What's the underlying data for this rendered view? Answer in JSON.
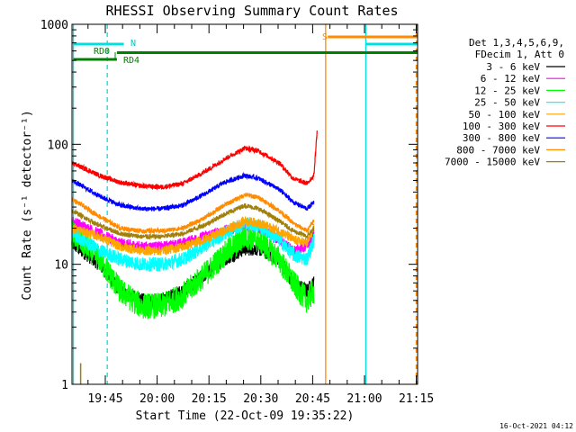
{
  "chart_data": {
    "type": "line",
    "title": "RHESSI Observing Summary Count Rates",
    "xlabel": "Start Time (22-Oct-09 19:35:22)",
    "ylabel": "Count Rate (s⁻¹ detector⁻¹)",
    "yscale": "log",
    "ylim": [
      1,
      1000
    ],
    "xlim_minutes_after_1935": [
      0,
      100
    ],
    "x_ticks": [
      "19:45",
      "20:00",
      "20:15",
      "20:30",
      "20:45",
      "21:00",
      "21:15"
    ],
    "y_ticks": [
      "1",
      "10",
      "100",
      "1000"
    ],
    "legend": {
      "header": [
        "Det 1,3,4,5,6,9,",
        "FDecim 1, Att 0"
      ],
      "placement": "right"
    },
    "series": [
      {
        "name": "3 - 6 keV",
        "color": "#000000",
        "anchors": [
          [
            0,
            15
          ],
          [
            8,
            10
          ],
          [
            14,
            6
          ],
          [
            20,
            5
          ],
          [
            26,
            5
          ],
          [
            32,
            6
          ],
          [
            38,
            8
          ],
          [
            44,
            11
          ],
          [
            50,
            13.5
          ],
          [
            54,
            13.5
          ],
          [
            60,
            11
          ],
          [
            64,
            7
          ],
          [
            68,
            6
          ],
          [
            70,
            7
          ]
        ]
      },
      {
        "name": "6 - 12 keV",
        "color": "#ff00ff",
        "anchors": [
          [
            0,
            23
          ],
          [
            8,
            18
          ],
          [
            14,
            15
          ],
          [
            20,
            14
          ],
          [
            26,
            14
          ],
          [
            32,
            15
          ],
          [
            38,
            17
          ],
          [
            44,
            19
          ],
          [
            50,
            21
          ],
          [
            54,
            20
          ],
          [
            60,
            16
          ],
          [
            64,
            13
          ],
          [
            68,
            14
          ],
          [
            70,
            18
          ]
        ]
      },
      {
        "name": "12 - 25 keV",
        "color": "#00ff00",
        "anchors": [
          [
            0,
            18
          ],
          [
            8,
            11
          ],
          [
            14,
            6
          ],
          [
            20,
            4.5
          ],
          [
            26,
            4.5
          ],
          [
            32,
            5.5
          ],
          [
            38,
            8
          ],
          [
            44,
            12
          ],
          [
            50,
            17
          ],
          [
            54,
            16
          ],
          [
            60,
            11
          ],
          [
            64,
            7
          ],
          [
            68,
            5
          ],
          [
            70,
            6
          ]
        ]
      },
      {
        "name": "25 - 50 keV",
        "color": "#00ffff",
        "anchors": [
          [
            0,
            18
          ],
          [
            8,
            13
          ],
          [
            14,
            11
          ],
          [
            20,
            10
          ],
          [
            26,
            10
          ],
          [
            32,
            11
          ],
          [
            38,
            14
          ],
          [
            44,
            18
          ],
          [
            50,
            22
          ],
          [
            54,
            21
          ],
          [
            60,
            16
          ],
          [
            64,
            12
          ],
          [
            68,
            11
          ],
          [
            70,
            16
          ]
        ]
      },
      {
        "name": "50 - 100 keV",
        "color": "#ffa500",
        "anchors": [
          [
            0,
            20
          ],
          [
            8,
            17
          ],
          [
            14,
            14
          ],
          [
            20,
            13
          ],
          [
            26,
            13
          ],
          [
            32,
            14
          ],
          [
            38,
            16
          ],
          [
            44,
            19
          ],
          [
            50,
            23
          ],
          [
            54,
            22
          ],
          [
            60,
            19
          ],
          [
            64,
            16
          ],
          [
            68,
            15
          ],
          [
            70,
            20
          ]
        ]
      },
      {
        "name": "100 - 300 keV",
        "color": "#ff0000",
        "anchors": [
          [
            0,
            70
          ],
          [
            8,
            55
          ],
          [
            14,
            48
          ],
          [
            20,
            45
          ],
          [
            26,
            44
          ],
          [
            32,
            47
          ],
          [
            38,
            58
          ],
          [
            44,
            75
          ],
          [
            50,
            93
          ],
          [
            54,
            88
          ],
          [
            60,
            70
          ],
          [
            64,
            52
          ],
          [
            68,
            47
          ],
          [
            70,
            55
          ],
          [
            71,
            140
          ]
        ]
      },
      {
        "name": "300 - 800 keV",
        "color": "#0000ff",
        "anchors": [
          [
            0,
            50
          ],
          [
            8,
            37
          ],
          [
            14,
            31
          ],
          [
            20,
            29
          ],
          [
            26,
            29
          ],
          [
            32,
            31
          ],
          [
            38,
            38
          ],
          [
            44,
            48
          ],
          [
            50,
            55
          ],
          [
            54,
            52
          ],
          [
            60,
            42
          ],
          [
            64,
            33
          ],
          [
            68,
            29
          ],
          [
            70,
            33
          ]
        ]
      },
      {
        "name": "800 - 7000 keV",
        "color": "#ff8c00",
        "anchors": [
          [
            0,
            35
          ],
          [
            8,
            25
          ],
          [
            14,
            20
          ],
          [
            20,
            19
          ],
          [
            26,
            19
          ],
          [
            32,
            20
          ],
          [
            38,
            24
          ],
          [
            44,
            31
          ],
          [
            50,
            38
          ],
          [
            54,
            36
          ],
          [
            60,
            28
          ],
          [
            64,
            22
          ],
          [
            68,
            19
          ],
          [
            70,
            23
          ]
        ]
      },
      {
        "name": "7000 - 15000 keV",
        "color": "#a0800a",
        "anchors": [
          [
            0,
            28
          ],
          [
            8,
            21
          ],
          [
            14,
            18
          ],
          [
            20,
            17
          ],
          [
            26,
            17
          ],
          [
            32,
            18
          ],
          [
            38,
            21
          ],
          [
            44,
            26
          ],
          [
            50,
            31
          ],
          [
            54,
            29
          ],
          [
            60,
            23
          ],
          [
            64,
            19
          ],
          [
            68,
            17
          ],
          [
            70,
            20
          ]
        ]
      }
    ],
    "annotations": [
      {
        "text": "RD0",
        "color": "#008000"
      },
      {
        "text": "RD4",
        "color": "#008000"
      },
      {
        "text": "N",
        "color": "#00c8c8"
      },
      {
        "text": "S",
        "color": "#ff8c00"
      }
    ],
    "timestamp": "16-Oct-2021 04:12"
  }
}
